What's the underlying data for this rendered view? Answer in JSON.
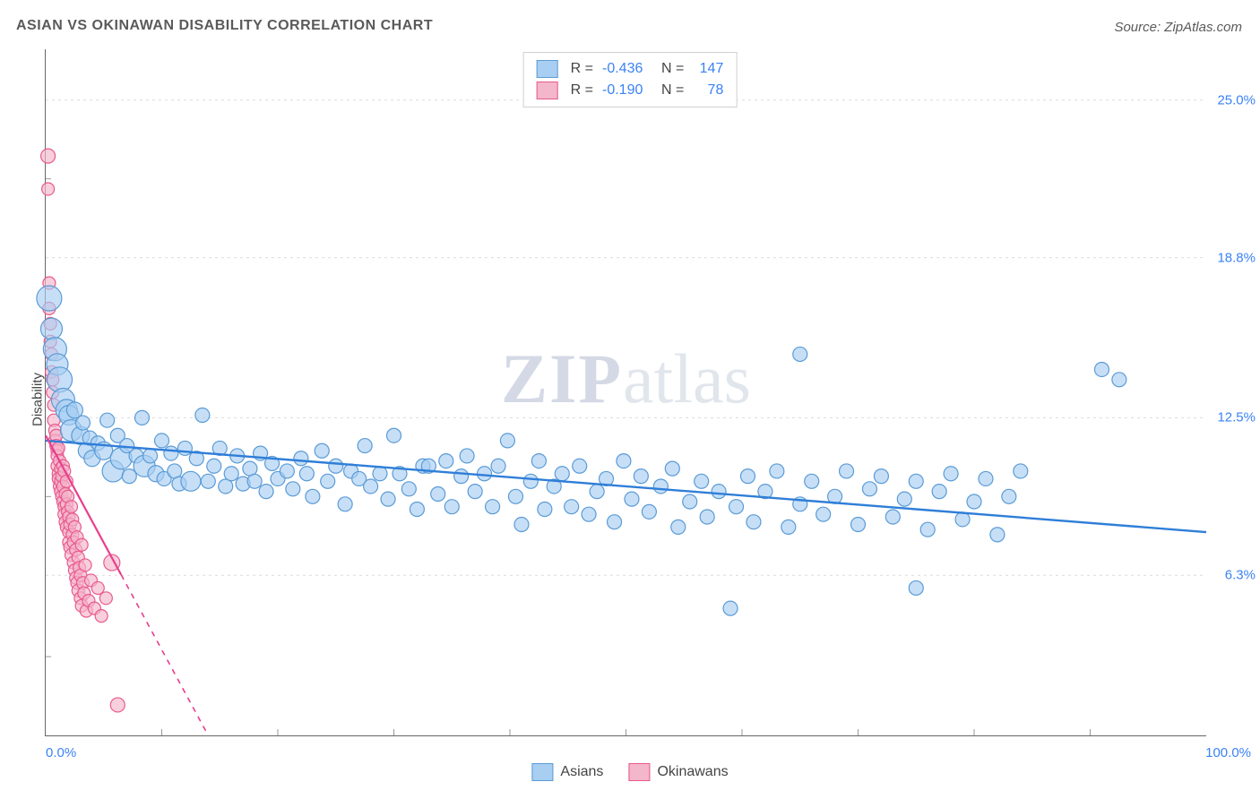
{
  "title": "ASIAN VS OKINAWAN DISABILITY CORRELATION CHART",
  "source": "Source: ZipAtlas.com",
  "watermark_a": "ZIP",
  "watermark_b": "atlas",
  "y_axis_label": "Disability",
  "chart": {
    "type": "scatter",
    "x_domain": [
      0,
      100
    ],
    "y_domain": [
      0,
      27
    ],
    "background_color": "#ffffff",
    "grid_color": "#dcdcdc",
    "y_ticks": [
      {
        "v": 6.3,
        "label": "6.3%"
      },
      {
        "v": 12.5,
        "label": "12.5%"
      },
      {
        "v": 18.8,
        "label": "18.8%"
      },
      {
        "v": 25.0,
        "label": "25.0%"
      }
    ],
    "x_ticks_minor": [
      10,
      20,
      30,
      40,
      50,
      60,
      70,
      80,
      90
    ],
    "y_ticks_minor": [
      3.1,
      9.4,
      15.6,
      21.9
    ],
    "x_tick_left": "0.0%",
    "x_tick_right": "100.0%",
    "series": [
      {
        "name": "Asians",
        "fill": "#a8cef2",
        "stroke": "#5b9bd5",
        "line_color": "#2f7ed8",
        "line_style": "solid",
        "r_default": 8,
        "trend": {
          "x1": 0,
          "y1": 11.6,
          "x2": 100,
          "y2": 8.0
        },
        "R": "-0.436",
        "N": "147",
        "points": [
          [
            0.3,
            17.2,
            14
          ],
          [
            0.5,
            16.0,
            12
          ],
          [
            0.8,
            15.2,
            13
          ],
          [
            1.0,
            14.6,
            12
          ],
          [
            1.2,
            14.0,
            14
          ],
          [
            1.5,
            13.2,
            13
          ],
          [
            1.8,
            12.8,
            12
          ],
          [
            2.0,
            12.6,
            11
          ],
          [
            2.2,
            12.0,
            12
          ],
          [
            2.5,
            12.8,
            9
          ],
          [
            3.0,
            11.8,
            10
          ],
          [
            3.2,
            12.3,
            8
          ],
          [
            3.5,
            11.2,
            9
          ],
          [
            3.8,
            11.7,
            8
          ],
          [
            4.0,
            10.9,
            9
          ],
          [
            4.5,
            11.5,
            8
          ],
          [
            5.0,
            11.2,
            10
          ],
          [
            5.3,
            12.4,
            8
          ],
          [
            5.8,
            10.4,
            12
          ],
          [
            6.2,
            11.8,
            8
          ],
          [
            6.5,
            10.9,
            12
          ],
          [
            7.0,
            11.4,
            8
          ],
          [
            7.2,
            10.2,
            8
          ],
          [
            7.8,
            11.0,
            8
          ],
          [
            8.3,
            12.5,
            8
          ],
          [
            8.5,
            10.6,
            12
          ],
          [
            9.0,
            11.0,
            8
          ],
          [
            9.5,
            10.3,
            9
          ],
          [
            10.0,
            11.6,
            8
          ],
          [
            10.2,
            10.1,
            8
          ],
          [
            10.8,
            11.1,
            8
          ],
          [
            11.1,
            10.4,
            8
          ],
          [
            11.5,
            9.9,
            8
          ],
          [
            12.0,
            11.3,
            8
          ],
          [
            12.5,
            10.0,
            11
          ],
          [
            13.0,
            10.9,
            8
          ],
          [
            13.5,
            12.6,
            8
          ],
          [
            14.0,
            10.0,
            8
          ],
          [
            14.5,
            10.6,
            8
          ],
          [
            15.0,
            11.3,
            8
          ],
          [
            15.5,
            9.8,
            8
          ],
          [
            16.0,
            10.3,
            8
          ],
          [
            16.5,
            11.0,
            8
          ],
          [
            17.0,
            9.9,
            8
          ],
          [
            17.6,
            10.5,
            8
          ],
          [
            18.0,
            10.0,
            8
          ],
          [
            18.5,
            11.1,
            8
          ],
          [
            19.0,
            9.6,
            8
          ],
          [
            19.5,
            10.7,
            8
          ],
          [
            20.0,
            10.1,
            8
          ],
          [
            20.8,
            10.4,
            8
          ],
          [
            21.3,
            9.7,
            8
          ],
          [
            22.0,
            10.9,
            8
          ],
          [
            22.5,
            10.3,
            8
          ],
          [
            23.0,
            9.4,
            8
          ],
          [
            23.8,
            11.2,
            8
          ],
          [
            24.3,
            10.0,
            8
          ],
          [
            25.0,
            10.6,
            8
          ],
          [
            25.8,
            9.1,
            8
          ],
          [
            26.3,
            10.4,
            8
          ],
          [
            27.0,
            10.1,
            8
          ],
          [
            27.5,
            11.4,
            8
          ],
          [
            28.0,
            9.8,
            8
          ],
          [
            28.8,
            10.3,
            8
          ],
          [
            29.5,
            9.3,
            8
          ],
          [
            30.0,
            11.8,
            8
          ],
          [
            30.5,
            10.3,
            8
          ],
          [
            31.3,
            9.7,
            8
          ],
          [
            32.0,
            8.9,
            8
          ],
          [
            32.5,
            10.6,
            8
          ],
          [
            33.0,
            10.6,
            8
          ],
          [
            33.8,
            9.5,
            8
          ],
          [
            34.5,
            10.8,
            8
          ],
          [
            35.0,
            9.0,
            8
          ],
          [
            35.8,
            10.2,
            8
          ],
          [
            36.3,
            11.0,
            8
          ],
          [
            37.0,
            9.6,
            8
          ],
          [
            37.8,
            10.3,
            8
          ],
          [
            38.5,
            9.0,
            8
          ],
          [
            39.0,
            10.6,
            8
          ],
          [
            39.8,
            11.6,
            8
          ],
          [
            40.5,
            9.4,
            8
          ],
          [
            41.0,
            8.3,
            8
          ],
          [
            41.8,
            10.0,
            8
          ],
          [
            42.5,
            10.8,
            8
          ],
          [
            43.0,
            8.9,
            8
          ],
          [
            43.8,
            9.8,
            8
          ],
          [
            44.5,
            10.3,
            8
          ],
          [
            45.3,
            9.0,
            8
          ],
          [
            46.0,
            10.6,
            8
          ],
          [
            46.8,
            8.7,
            8
          ],
          [
            47.5,
            9.6,
            8
          ],
          [
            48.3,
            10.1,
            8
          ],
          [
            49.0,
            8.4,
            8
          ],
          [
            49.8,
            10.8,
            8
          ],
          [
            50.5,
            9.3,
            8
          ],
          [
            51.3,
            10.2,
            8
          ],
          [
            52.0,
            8.8,
            8
          ],
          [
            53.0,
            9.8,
            8
          ],
          [
            54.0,
            10.5,
            8
          ],
          [
            54.5,
            8.2,
            8
          ],
          [
            55.5,
            9.2,
            8
          ],
          [
            56.5,
            10.0,
            8
          ],
          [
            57.0,
            8.6,
            8
          ],
          [
            58.0,
            9.6,
            8
          ],
          [
            59.0,
            5.0,
            8
          ],
          [
            59.5,
            9.0,
            8
          ],
          [
            60.5,
            10.2,
            8
          ],
          [
            61.0,
            8.4,
            8
          ],
          [
            62.0,
            9.6,
            8
          ],
          [
            63.0,
            10.4,
            8
          ],
          [
            64.0,
            8.2,
            8
          ],
          [
            65.0,
            15.0,
            8
          ],
          [
            65.0,
            9.1,
            8
          ],
          [
            66.0,
            10.0,
            8
          ],
          [
            67.0,
            8.7,
            8
          ],
          [
            68.0,
            9.4,
            8
          ],
          [
            69.0,
            10.4,
            8
          ],
          [
            70.0,
            8.3,
            8
          ],
          [
            71.0,
            9.7,
            8
          ],
          [
            72.0,
            10.2,
            8
          ],
          [
            73.0,
            8.6,
            8
          ],
          [
            74.0,
            9.3,
            8
          ],
          [
            75.0,
            10.0,
            8
          ],
          [
            75.0,
            5.8,
            8
          ],
          [
            76.0,
            8.1,
            8
          ],
          [
            77.0,
            9.6,
            8
          ],
          [
            78.0,
            10.3,
            8
          ],
          [
            79.0,
            8.5,
            8
          ],
          [
            80.0,
            9.2,
            8
          ],
          [
            81.0,
            10.1,
            8
          ],
          [
            82.0,
            7.9,
            8
          ],
          [
            83.0,
            9.4,
            8
          ],
          [
            84.0,
            10.4,
            8
          ],
          [
            91.0,
            14.4,
            8
          ],
          [
            92.5,
            14.0,
            8
          ]
        ]
      },
      {
        "name": "Okinawans",
        "fill": "#f4b6cb",
        "stroke": "#e75a8d",
        "line_color": "#e83e8c",
        "line_style": "dashed",
        "r_default": 7,
        "trend_solid_to_x": 6.5,
        "trend": {
          "x1": 0,
          "y1": 11.8,
          "x2": 14,
          "y2": 0
        },
        "R": "-0.190",
        "N": "78",
        "points": [
          [
            0.2,
            22.8,
            8
          ],
          [
            0.2,
            21.5,
            7
          ],
          [
            0.3,
            17.8,
            7
          ],
          [
            0.3,
            16.8,
            7
          ],
          [
            0.4,
            16.2,
            7
          ],
          [
            0.4,
            15.5,
            7
          ],
          [
            0.5,
            15.0,
            7
          ],
          [
            0.5,
            14.3,
            7
          ],
          [
            0.6,
            14.0,
            7
          ],
          [
            0.6,
            13.5,
            7
          ],
          [
            0.7,
            13.0,
            7
          ],
          [
            0.7,
            12.4,
            7
          ],
          [
            0.8,
            12.0,
            7
          ],
          [
            0.8,
            11.6,
            7
          ],
          [
            0.9,
            11.8,
            7
          ],
          [
            0.9,
            11.4,
            7
          ],
          [
            1.0,
            11.2,
            7
          ],
          [
            1.0,
            11.0,
            7
          ],
          [
            1.0,
            10.6,
            7
          ],
          [
            1.1,
            11.3,
            7
          ],
          [
            1.1,
            10.3,
            7
          ],
          [
            1.1,
            10.1,
            7
          ],
          [
            1.2,
            10.8,
            7
          ],
          [
            1.2,
            9.8,
            7
          ],
          [
            1.3,
            10.5,
            7
          ],
          [
            1.3,
            9.6,
            7
          ],
          [
            1.3,
            10.0,
            7
          ],
          [
            1.4,
            10.2,
            7
          ],
          [
            1.4,
            9.4,
            7
          ],
          [
            1.5,
            10.6,
            7
          ],
          [
            1.5,
            9.2,
            7
          ],
          [
            1.5,
            9.8,
            7
          ],
          [
            1.6,
            9.0,
            7
          ],
          [
            1.6,
            10.4,
            7
          ],
          [
            1.6,
            8.7,
            7
          ],
          [
            1.7,
            9.5,
            7
          ],
          [
            1.7,
            8.4,
            7
          ],
          [
            1.8,
            10.0,
            7
          ],
          [
            1.8,
            8.2,
            7
          ],
          [
            1.8,
            9.1,
            7
          ],
          [
            1.9,
            8.8,
            7
          ],
          [
            1.9,
            9.4,
            7
          ],
          [
            2.0,
            8.0,
            7
          ],
          [
            2.0,
            7.6,
            7
          ],
          [
            2.0,
            8.6,
            7
          ],
          [
            2.1,
            7.4,
            7
          ],
          [
            2.1,
            8.3,
            7
          ],
          [
            2.2,
            9.0,
            7
          ],
          [
            2.2,
            7.1,
            7
          ],
          [
            2.3,
            7.9,
            7
          ],
          [
            2.3,
            8.5,
            7
          ],
          [
            2.4,
            6.8,
            7
          ],
          [
            2.4,
            7.6,
            7
          ],
          [
            2.5,
            8.2,
            7
          ],
          [
            2.5,
            6.5,
            7
          ],
          [
            2.6,
            7.3,
            7
          ],
          [
            2.6,
            6.2,
            7
          ],
          [
            2.7,
            7.8,
            7
          ],
          [
            2.7,
            6.0,
            7
          ],
          [
            2.8,
            7.0,
            7
          ],
          [
            2.8,
            5.7,
            7
          ],
          [
            2.9,
            6.6,
            7
          ],
          [
            3.0,
            5.4,
            7
          ],
          [
            3.0,
            6.3,
            7
          ],
          [
            3.1,
            7.5,
            7
          ],
          [
            3.1,
            5.1,
            7
          ],
          [
            3.2,
            6.0,
            7
          ],
          [
            3.3,
            5.6,
            7
          ],
          [
            3.4,
            6.7,
            7
          ],
          [
            3.5,
            4.9,
            7
          ],
          [
            3.7,
            5.3,
            7
          ],
          [
            3.9,
            6.1,
            7
          ],
          [
            4.2,
            5.0,
            7
          ],
          [
            4.5,
            5.8,
            7
          ],
          [
            4.8,
            4.7,
            7
          ],
          [
            5.2,
            5.4,
            7
          ],
          [
            5.7,
            6.8,
            9
          ],
          [
            6.2,
            1.2,
            8
          ]
        ]
      }
    ]
  },
  "legend_bottom": [
    {
      "label": "Asians",
      "fill": "#a8cef2",
      "stroke": "#5b9bd5"
    },
    {
      "label": "Okinawans",
      "fill": "#f4b6cb",
      "stroke": "#e75a8d"
    }
  ]
}
